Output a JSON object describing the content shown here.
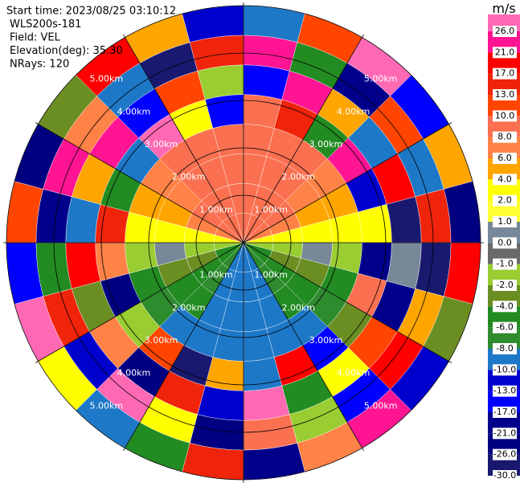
{
  "chart_data": {
    "type": "ppi",
    "annotations": [
      "Start time: 2023/08/25 03:10:12",
      "WLS200s-181",
      "Field: VEL",
      "Elevation(deg): 35.30",
      "NRays: 120"
    ],
    "range_rings": [
      {
        "value": 1,
        "label": "1.00km"
      },
      {
        "value": 2,
        "label": "2.00km"
      },
      {
        "value": 3,
        "label": "3.00km"
      },
      {
        "value": 4,
        "label": "4.00km"
      },
      {
        "value": 5,
        "label": "5.00km"
      }
    ],
    "field": {
      "values": [
        [
          9,
          9,
          9,
          9,
          7,
          3,
          -1.5,
          -5,
          -5,
          -7,
          -9,
          -9,
          -9,
          -9,
          -7,
          -5,
          -5,
          -1.5,
          3,
          7,
          9,
          9,
          9,
          9
        ],
        [
          9,
          9,
          9,
          9,
          7,
          3,
          -1.5,
          -3,
          -5,
          -7,
          -9,
          -9,
          -9,
          -9,
          -7,
          -5,
          -3,
          -1.5,
          3,
          7,
          9,
          9,
          9,
          9
        ],
        [
          9,
          9,
          9,
          7,
          5,
          3,
          0.5,
          -3,
          -5,
          -5,
          -9,
          -9,
          -9,
          -9,
          -5,
          -5,
          -3,
          0.5,
          3,
          5,
          7,
          9,
          9,
          9
        ],
        [
          9,
          9,
          9,
          7,
          5,
          3,
          -1.5,
          -5,
          -7,
          -9,
          -9,
          -9,
          -9,
          -9,
          -9,
          -7,
          -5,
          -1.5,
          3,
          5,
          7,
          9,
          9,
          9
        ],
        [
          9,
          15,
          -5,
          23,
          -11,
          3,
          -19,
          9,
          -3,
          -15,
          19,
          -9,
          5,
          -28,
          11,
          -1.5,
          -23,
          7,
          15,
          -5,
          -9,
          28,
          3,
          -15
        ],
        [
          -15,
          23,
          5,
          -9,
          19,
          -28,
          0.5,
          -19,
          11,
          3,
          -5,
          28,
          -11,
          15,
          -23,
          7,
          -3,
          19,
          -9,
          5,
          23,
          -15,
          11,
          -1.5
        ],
        [
          23,
          -5,
          -19,
          11,
          -9,
          15,
          -28,
          5,
          19,
          -15,
          -1.5,
          9,
          -23,
          3,
          28,
          -11,
          15,
          -5,
          -19,
          23,
          7,
          -9,
          -28,
          15
        ],
        [
          -9,
          11,
          28,
          -15,
          5,
          -23,
          19,
          -3,
          -11,
          23,
          7,
          -19,
          15,
          -5,
          -9,
          3,
          28,
          -15,
          11,
          -23,
          -3,
          19,
          5,
          -11
        ]
      ]
    },
    "colorbar": {
      "title": "m/s",
      "ticks": [
        {
          "value": 26,
          "label": "26.0"
        },
        {
          "value": 21,
          "label": "21.0"
        },
        {
          "value": 17,
          "label": "17.0"
        },
        {
          "value": 13,
          "label": "13.0"
        },
        {
          "value": 10,
          "label": "10.0"
        },
        {
          "value": 8,
          "label": "8.0"
        },
        {
          "value": 6,
          "label": "6.0"
        },
        {
          "value": 4,
          "label": "4.0"
        },
        {
          "value": 2,
          "label": "2.0"
        },
        {
          "value": 1,
          "label": "1.0"
        },
        {
          "value": 0,
          "label": "0.0"
        },
        {
          "value": -1,
          "label": "-1.0"
        },
        {
          "value": -2,
          "label": "-2.0"
        },
        {
          "value": -4,
          "label": "-4.0"
        },
        {
          "value": -6,
          "label": "-6.0"
        },
        {
          "value": -8,
          "label": "-8.0"
        },
        {
          "value": -10,
          "label": "-10.0"
        },
        {
          "value": -13,
          "label": "-13.0"
        },
        {
          "value": -17,
          "label": "-17.0"
        },
        {
          "value": -21,
          "label": "-21.0"
        },
        {
          "value": -26,
          "label": "-26.0"
        },
        {
          "value": -30,
          "label": "-30.0"
        }
      ],
      "colors": [
        "#ff69b4",
        "#ff1493",
        "#ff0000",
        "#f0240a",
        "#ff4500",
        "#fa7050",
        "#ff8247",
        "#ffa500",
        "#ffff00",
        "#ffff33",
        "#778899",
        "#696969",
        "#9acd32",
        "#6b8e23",
        "#228b22",
        "#2e8b2e",
        "#1e78c8",
        "#0000cd",
        "#0000ff",
        "#00008b",
        "#000080",
        "#191970"
      ]
    }
  }
}
